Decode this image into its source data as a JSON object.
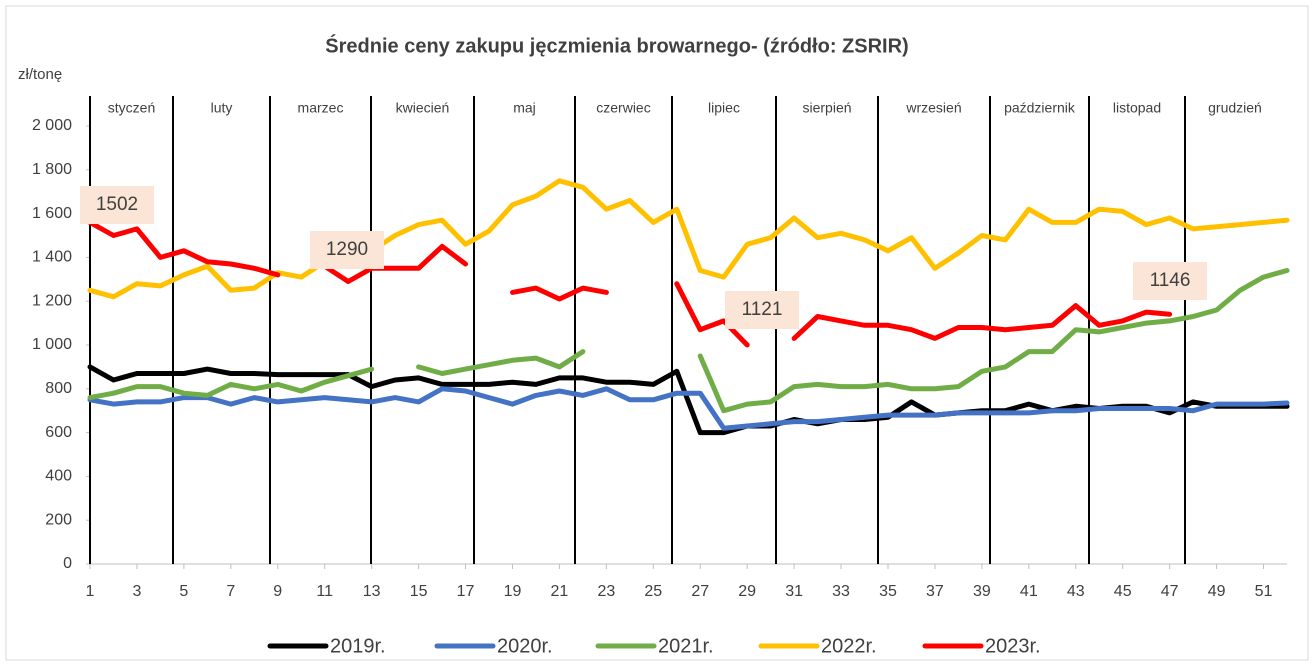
{
  "chart_data": {
    "type": "line",
    "title": "Średnie ceny zakupu jęczmienia browarnego- (źródło: ZSRIR)",
    "y_label": "zł/tonę",
    "months": [
      "styczeń",
      "luty",
      "marzec",
      "kwiecień",
      "maj",
      "czerwiec",
      "lipiec",
      "sierpień",
      "wrzesień",
      "październik",
      "listopad",
      "grudzień"
    ],
    "annotations": [
      "1502",
      "1290",
      "1121",
      "1146"
    ],
    "x": [
      1,
      2,
      3,
      4,
      5,
      6,
      7,
      8,
      9,
      10,
      11,
      12,
      13,
      14,
      15,
      16,
      17,
      18,
      19,
      20,
      21,
      22,
      23,
      24,
      25,
      26,
      27,
      28,
      29,
      30,
      31,
      32,
      33,
      34,
      35,
      36,
      37,
      38,
      39,
      40,
      41,
      42,
      43,
      44,
      45,
      46,
      47,
      48,
      49,
      50,
      51,
      52
    ],
    "xlim": [
      1,
      52
    ],
    "xticks": [
      1,
      3,
      5,
      7,
      9,
      11,
      13,
      15,
      17,
      19,
      21,
      23,
      25,
      27,
      29,
      31,
      33,
      35,
      37,
      39,
      41,
      43,
      45,
      47,
      49,
      51
    ],
    "ylim": [
      0,
      2000
    ],
    "yticks": [
      0,
      200,
      400,
      600,
      800,
      {
        "value": 1000,
        "label": "1 000"
      },
      {
        "value": 1200,
        "label": "1 200"
      },
      {
        "value": 1400,
        "label": "1 400"
      },
      {
        "value": 1600,
        "label": "1 600"
      },
      {
        "value": 1800,
        "label": "1 800"
      },
      {
        "value": 2000,
        "label": "2 000"
      }
    ],
    "grid": false,
    "legend": "bottom",
    "series": [
      {
        "name": "2019r.",
        "color": "#000000",
        "values": [
          900,
          840,
          870,
          870,
          870,
          890,
          870,
          870,
          865,
          865,
          865,
          865,
          810,
          840,
          850,
          820,
          820,
          820,
          830,
          820,
          850,
          850,
          830,
          830,
          820,
          880,
          600,
          600,
          630,
          630,
          660,
          640,
          660,
          660,
          670,
          740,
          680,
          690,
          700,
          700,
          730,
          700,
          720,
          710,
          720,
          720,
          690,
          740,
          720,
          720,
          720,
          720
        ]
      },
      {
        "name": "2020r.",
        "color": "#4472c4",
        "values": [
          750,
          730,
          740,
          740,
          760,
          760,
          730,
          760,
          740,
          750,
          760,
          750,
          740,
          760,
          740,
          800,
          790,
          760,
          730,
          770,
          790,
          770,
          800,
          750,
          750,
          780,
          780,
          620,
          630,
          640,
          650,
          650,
          660,
          670,
          680,
          680,
          680,
          690,
          690,
          690,
          690,
          700,
          700,
          710,
          710,
          710,
          710,
          700,
          730,
          730,
          730,
          735
        ]
      },
      {
        "name": "2021r.",
        "color": "#70ad47",
        "values": [
          760,
          780,
          810,
          810,
          780,
          770,
          820,
          800,
          820,
          790,
          830,
          860,
          890,
          null,
          900,
          870,
          890,
          910,
          930,
          940,
          900,
          970,
          null,
          null,
          null,
          null,
          950,
          700,
          730,
          740,
          810,
          820,
          810,
          810,
          820,
          800,
          800,
          810,
          880,
          900,
          970,
          970,
          1070,
          1060,
          1080,
          1100,
          1110,
          1130,
          1160,
          1250,
          1310,
          1340
        ]
      },
      {
        "name": "2022r.",
        "color": "#ffc000",
        "values": [
          1250,
          1220,
          1280,
          1270,
          1320,
          1360,
          1250,
          1260,
          1330,
          1310,
          1380,
          1420,
          1430,
          1500,
          1550,
          1570,
          1460,
          1520,
          1640,
          1680,
          1750,
          1720,
          1620,
          1660,
          1560,
          1620,
          1340,
          1310,
          1460,
          1490,
          1580,
          1490,
          1510,
          1480,
          1430,
          1490,
          1350,
          1420,
          1500,
          1480,
          1620,
          1560,
          1560,
          1620,
          1610,
          1550,
          1580,
          1530,
          1540,
          1550,
          1560,
          1570
        ]
      },
      {
        "name": "2023r.",
        "color": "#ff0000",
        "values": [
          1560,
          1500,
          1530,
          1400,
          1430,
          1380,
          1370,
          1350,
          1320,
          null,
          1360,
          1290,
          1350,
          1350,
          1350,
          1450,
          1370,
          null,
          1240,
          1260,
          1210,
          1260,
          1240,
          null,
          null,
          1280,
          1070,
          1110,
          1000,
          null,
          1030,
          1130,
          1110,
          1090,
          1090,
          1070,
          1030,
          1080,
          1080,
          1070,
          1080,
          1090,
          1180,
          1090,
          1110,
          1150,
          1140,
          null,
          null,
          null,
          null,
          null
        ]
      }
    ]
  }
}
